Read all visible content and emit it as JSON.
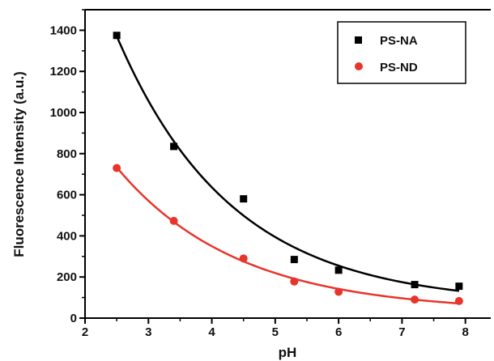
{
  "chart_data": {
    "type": "scatter",
    "xlabel": "pH",
    "ylabel": "Fluorescence Intensity (a.u.)",
    "xlim": [
      2,
      8.4
    ],
    "ylim": [
      0,
      1500
    ],
    "x_ticks": [
      2,
      3,
      4,
      5,
      6,
      7,
      8
    ],
    "y_ticks": [
      0,
      200,
      400,
      600,
      800,
      1000,
      1200,
      1400
    ],
    "grid": false,
    "legend_position": "top-right",
    "series": [
      {
        "name": "PS-NA",
        "marker": "square",
        "color": "#000000",
        "x": [
          2.5,
          3.4,
          4.5,
          5.3,
          6.0,
          7.2,
          7.9
        ],
        "y": [
          1375,
          835,
          580,
          285,
          233,
          163,
          155
        ],
        "fit": "exponential-decay"
      },
      {
        "name": "PS-ND",
        "marker": "circle",
        "color": "#e8342a",
        "x": [
          2.5,
          3.4,
          4.5,
          5.3,
          6.0,
          7.2,
          7.9
        ],
        "y": [
          730,
          473,
          290,
          178,
          128,
          90,
          83
        ],
        "fit": "exponential-decay"
      }
    ]
  }
}
